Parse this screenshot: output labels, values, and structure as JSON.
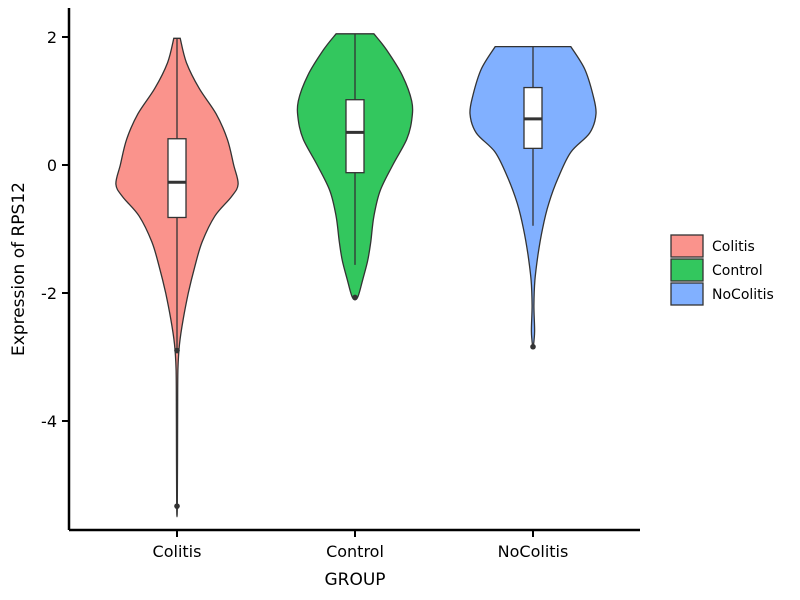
{
  "chart_data": {
    "type": "violin",
    "xlabel": "GROUP",
    "ylabel": "Expression of RPS12",
    "ylim": [
      -5.7,
      2.45
    ],
    "yticks": [
      2,
      0,
      -2,
      -4
    ],
    "ytick_labels": [
      "2",
      "0",
      "-2",
      "-4"
    ],
    "categories": [
      "Colitis",
      "Control",
      "NoColitis"
    ],
    "legend": {
      "placement": "right",
      "entries": [
        "Colitis",
        "Control",
        "NoColitis"
      ]
    },
    "grid": false,
    "groups": [
      {
        "name": "Colitis",
        "color": "#F8766D",
        "fill": "#FA938C",
        "box": {
          "q1": -0.82,
          "median": -0.27,
          "q3": 0.41,
          "whisker_low": -2.9,
          "whisker_high": 1.97
        },
        "outliers": [
          -2.9,
          -5.33
        ],
        "violin_max": 1.98,
        "violin_min": -5.33,
        "density": [
          [
            1.98,
            0.05
          ],
          [
            1.6,
            0.15
          ],
          [
            1.2,
            0.35
          ],
          [
            0.8,
            0.62
          ],
          [
            0.4,
            0.8
          ],
          [
            0.0,
            0.9
          ],
          [
            -0.3,
            0.97
          ],
          [
            -0.5,
            0.86
          ],
          [
            -0.8,
            0.6
          ],
          [
            -1.2,
            0.4
          ],
          [
            -1.6,
            0.28
          ],
          [
            -2.0,
            0.18
          ],
          [
            -2.4,
            0.1
          ],
          [
            -2.8,
            0.04
          ],
          [
            -3.2,
            0.015
          ],
          [
            -4.0,
            0.01
          ],
          [
            -5.33,
            0.005
          ]
        ]
      },
      {
        "name": "Control",
        "color": "#00BA38",
        "fill": "#33C75E",
        "box": {
          "q1": -0.12,
          "median": 0.51,
          "q3": 1.02,
          "whisker_low": -1.56,
          "whisker_high": 2.05
        },
        "outliers": [
          -2.07
        ],
        "violin_max": 2.05,
        "violin_min": -2.07,
        "density": [
          [
            2.05,
            0.3
          ],
          [
            1.8,
            0.5
          ],
          [
            1.4,
            0.75
          ],
          [
            1.0,
            0.9
          ],
          [
            0.7,
            0.9
          ],
          [
            0.4,
            0.82
          ],
          [
            0.0,
            0.6
          ],
          [
            -0.4,
            0.4
          ],
          [
            -0.8,
            0.3
          ],
          [
            -1.2,
            0.25
          ],
          [
            -1.5,
            0.2
          ],
          [
            -1.8,
            0.12
          ],
          [
            -2.07,
            0.04
          ]
        ]
      },
      {
        "name": "NoColitis",
        "color": "#619CFF",
        "fill": "#81B0FF",
        "box": {
          "q1": 0.26,
          "median": 0.72,
          "q3": 1.21,
          "whisker_low": -0.95,
          "whisker_high": 1.85
        },
        "outliers": [
          -2.84
        ],
        "violin_max": 1.85,
        "violin_min": -2.84,
        "density": [
          [
            1.85,
            0.6
          ],
          [
            1.5,
            0.82
          ],
          [
            1.1,
            0.95
          ],
          [
            0.8,
            1.0
          ],
          [
            0.5,
            0.9
          ],
          [
            0.2,
            0.6
          ],
          [
            -0.2,
            0.4
          ],
          [
            -0.6,
            0.25
          ],
          [
            -1.0,
            0.15
          ],
          [
            -1.4,
            0.08
          ],
          [
            -1.8,
            0.03
          ],
          [
            -2.2,
            0.015
          ],
          [
            -2.6,
            0.025
          ],
          [
            -2.84,
            0.005
          ]
        ]
      }
    ]
  }
}
